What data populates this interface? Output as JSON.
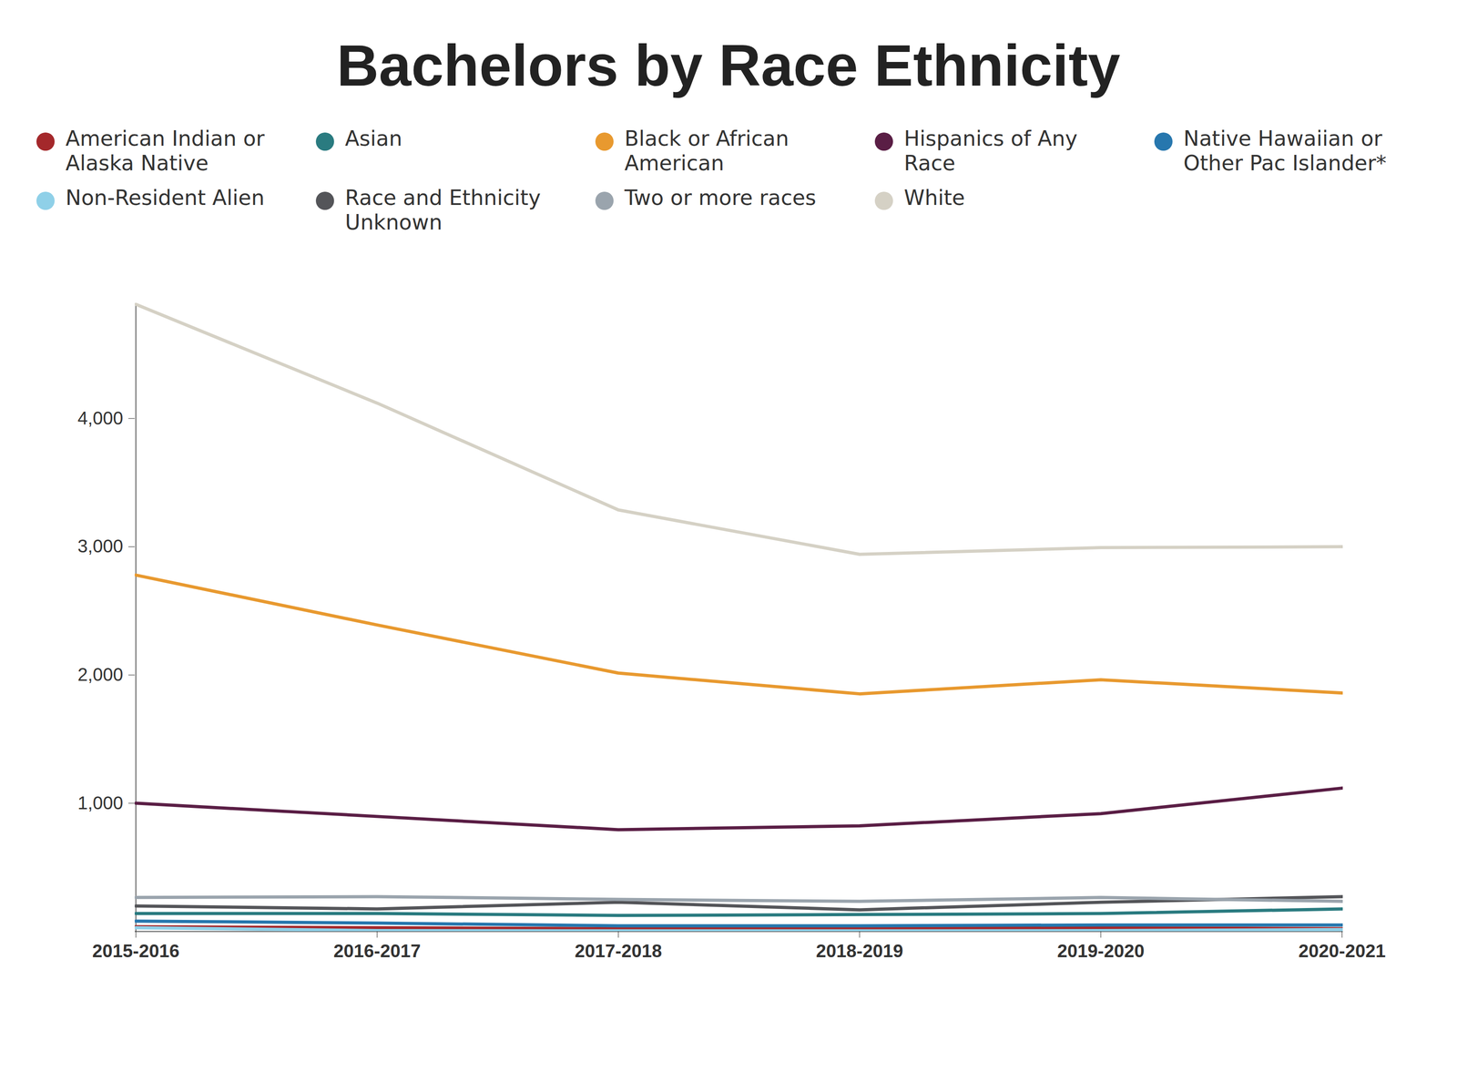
{
  "chart_data": {
    "type": "line",
    "title": "Bachelors by Race Ethnicity",
    "x": [
      "2015-2016",
      "2016-2017",
      "2017-2018",
      "2018-2019",
      "2019-2020",
      "2020-2021"
    ],
    "series": [
      {
        "name": "American Indian or Alaska Native",
        "color": "#a4282b",
        "values": [
          37,
          29,
          22,
          22,
          29,
          22
        ]
      },
      {
        "name": "Asian",
        "color": "#2a7b80",
        "values": [
          140,
          140,
          125,
          132,
          140,
          176
        ]
      },
      {
        "name": "Black or African American",
        "color": "#e8992f",
        "values": [
          2779,
          2390,
          2015,
          1853,
          1963,
          1860
        ]
      },
      {
        "name": "Hispanics of Any Race",
        "color": "#5a1e45",
        "values": [
          1000,
          897,
          794,
          824,
          919,
          1118
        ]
      },
      {
        "name": "Native Hawaiian or Other Pac Islander*",
        "color": "#2777ae",
        "values": [
          81,
          66,
          44,
          44,
          51,
          51
        ]
      },
      {
        "name": "Non-Resident Alien",
        "color": "#8fd0e8",
        "values": [
          29,
          7,
          5,
          5,
          7,
          15
        ]
      },
      {
        "name": "Race and Ethnicity Unknown",
        "color": "#545559",
        "values": [
          199,
          176,
          228,
          169,
          228,
          272
        ]
      },
      {
        "name": "Two or more races",
        "color": "#9aa4ad",
        "values": [
          265,
          272,
          250,
          235,
          265,
          235
        ]
      },
      {
        "name": "White",
        "color": "#d5d1c5",
        "values": [
          4890,
          4120,
          3287,
          2941,
          2993,
          3000
        ]
      }
    ],
    "ylim": [
      0,
      4900
    ],
    "yticks": [
      1000,
      2000,
      3000,
      4000
    ],
    "grid": false,
    "legend": "top"
  }
}
